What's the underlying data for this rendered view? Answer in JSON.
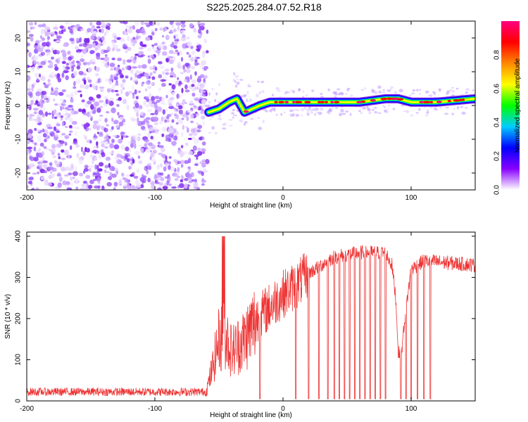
{
  "title": "S225.2025.284.07.52.R18",
  "chart_data": [
    {
      "type": "heatmap",
      "xlabel": "Height of straight line (km)",
      "ylabel": "Frequency (Hz)",
      "xlim": [
        -200,
        150
      ],
      "ylim": [
        -25,
        25
      ],
      "xticks": [
        -200,
        -100,
        0,
        100
      ],
      "yticks": [
        -20,
        -10,
        0,
        10,
        20
      ],
      "noise_region": {
        "x": [
          -200,
          -59
        ],
        "y": [
          -25,
          25
        ]
      },
      "ridge": {
        "x": [
          -58,
          -50,
          -42,
          -36,
          -30,
          -24,
          -18,
          -10,
          0,
          20,
          40,
          60,
          80,
          90,
          100,
          120,
          150
        ],
        "y": [
          -2,
          -1,
          1,
          2,
          -2,
          -1,
          0,
          1,
          1,
          1,
          1,
          1,
          2,
          2,
          1,
          1,
          2
        ]
      },
      "colorbar": {
        "label": "Normalized spectral amplitude",
        "range": [
          0,
          1
        ],
        "ticks": [
          "0.0",
          "0.2",
          "0.4",
          "0.6",
          "0.8"
        ],
        "colors": [
          "#ffffff",
          "#8800ff",
          "#0000ff",
          "#00ccff",
          "#00ff00",
          "#ffff00",
          "#ff8800",
          "#ff0000",
          "#ff0080"
        ]
      }
    },
    {
      "type": "line",
      "xlabel": "Height of straight line (km)",
      "ylabel": "SNR (10 * v/v)",
      "xlim": [
        -200,
        150
      ],
      "ylim": [
        0,
        410
      ],
      "xticks": [
        -200,
        -100,
        0,
        100
      ],
      "yticks": [
        0,
        100,
        200,
        300,
        400
      ],
      "color": "#ee3333",
      "profile": {
        "x": [
          -200,
          -150,
          -100,
          -60,
          -55,
          -50,
          -45,
          -40,
          -30,
          -20,
          -10,
          0,
          10,
          20,
          30,
          40,
          60,
          80,
          85,
          88,
          90,
          92,
          95,
          100,
          110,
          130,
          150
        ],
        "y": [
          22,
          22,
          22,
          22,
          80,
          150,
          160,
          120,
          150,
          200,
          230,
          260,
          280,
          310,
          330,
          350,
          360,
          360,
          330,
          250,
          120,
          100,
          200,
          320,
          340,
          335,
          330
        ]
      },
      "dropouts_x": [
        -18,
        10,
        20,
        28,
        35,
        40,
        44,
        48,
        52,
        56,
        60,
        64,
        68,
        72,
        76,
        80,
        92,
        96,
        100,
        105,
        110,
        115
      ]
    }
  ]
}
